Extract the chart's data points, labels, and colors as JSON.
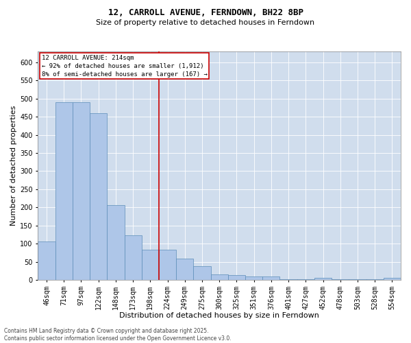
{
  "title": "12, CARROLL AVENUE, FERNDOWN, BH22 8BP",
  "subtitle": "Size of property relative to detached houses in Ferndown",
  "xlabel": "Distribution of detached houses by size in Ferndown",
  "ylabel": "Number of detached properties",
  "footnote1": "Contains HM Land Registry data © Crown copyright and database right 2025.",
  "footnote2": "Contains public sector information licensed under the Open Government Licence v3.0.",
  "annotation_line1": "12 CARROLL AVENUE: 214sqm",
  "annotation_line2": "← 92% of detached houses are smaller (1,912)",
  "annotation_line3": "8% of semi-detached houses are larger (167) →",
  "categories": [
    "46sqm",
    "71sqm",
    "97sqm",
    "122sqm",
    "148sqm",
    "173sqm",
    "198sqm",
    "224sqm",
    "249sqm",
    "275sqm",
    "300sqm",
    "325sqm",
    "351sqm",
    "376sqm",
    "401sqm",
    "427sqm",
    "452sqm",
    "478sqm",
    "503sqm",
    "528sqm",
    "554sqm"
  ],
  "values": [
    105,
    490,
    490,
    460,
    207,
    122,
    83,
    83,
    58,
    38,
    15,
    14,
    10,
    10,
    1,
    1,
    5,
    1,
    1,
    1,
    5
  ],
  "bar_color": "#aec6e8",
  "bar_edge_color": "#5b8db8",
  "vline_color": "#cc0000",
  "vline_x_index": 7,
  "box_color": "#cc0000",
  "background_color": "#ffffff",
  "grid_color": "#d0dded",
  "ylim": [
    0,
    630
  ],
  "yticks": [
    0,
    50,
    100,
    150,
    200,
    250,
    300,
    350,
    400,
    450,
    500,
    550,
    600
  ],
  "title_fontsize": 9,
  "subtitle_fontsize": 8,
  "xlabel_fontsize": 8,
  "ylabel_fontsize": 8,
  "tick_fontsize": 7,
  "annot_fontsize": 6.5,
  "footnote_fontsize": 5.5
}
